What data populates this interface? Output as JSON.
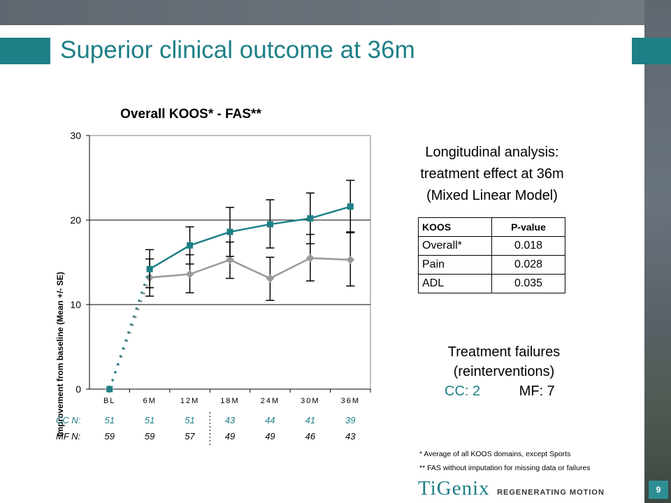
{
  "slide": {
    "title": "Superior clinical outcome at 36m",
    "page_number": "9"
  },
  "chart_data": {
    "type": "line",
    "title": "Overall KOOS* - FAS**",
    "ylabel": "Improvement from baseline (Mean +/- SE)",
    "xlabel": "",
    "categories": [
      "BL",
      "6M",
      "12M",
      "18M",
      "24M",
      "30M",
      "36M"
    ],
    "ylim": [
      0,
      30
    ],
    "yticks": [
      0,
      10,
      20,
      30
    ],
    "grid": "horizontal",
    "series": [
      {
        "key": "CC",
        "color": "#1e7f86",
        "marker": "square",
        "values": [
          0,
          14.2,
          17.0,
          18.6,
          19.5,
          20.2,
          21.6
        ],
        "upper": [
          null,
          16.5,
          19.2,
          21.5,
          22.4,
          23.2,
          24.7
        ],
        "lower": [
          null,
          12.0,
          14.8,
          15.7,
          16.7,
          17.2,
          18.6
        ]
      },
      {
        "key": "MF",
        "color": "#999999",
        "marker": "diamond",
        "values": [
          0,
          13.2,
          13.6,
          15.3,
          13.1,
          15.5,
          15.3
        ],
        "upper": [
          null,
          15.4,
          15.9,
          17.4,
          15.6,
          18.3,
          18.5
        ],
        "lower": [
          null,
          11.0,
          11.4,
          13.1,
          10.5,
          12.8,
          12.2
        ]
      }
    ]
  },
  "n_table": {
    "cc_label": "CC N:",
    "cc_values": [
      "51",
      "51",
      "51",
      "43",
      "44",
      "41",
      "39"
    ],
    "mf_label": "MF N:",
    "mf_values": [
      "59",
      "59",
      "57",
      "49",
      "49",
      "46",
      "43"
    ]
  },
  "analysis": {
    "line1": "Longitudinal analysis:",
    "line2": "treatment effect at 36m",
    "line3": "(Mixed Linear Model)",
    "headers": [
      "KOOS",
      "P-value"
    ],
    "rows": [
      [
        "Overall*",
        "0.018"
      ],
      [
        "Pain",
        "0.028"
      ],
      [
        "ADL",
        "0.035"
      ]
    ]
  },
  "failures": {
    "line1": "Treatment failures",
    "line2": "(reinterventions)",
    "cc": "CC: 2",
    "mf": "MF: 7",
    "cc_color": "#1e7f86"
  },
  "footnotes": {
    "f1": "* Average of all KOOS domains, except Sports",
    "f2": "** FAS without imputation for missing data or failures"
  },
  "logo": {
    "brand": "TiGenix",
    "tagline": "REGENERATING MOTION"
  },
  "colors": {
    "accent": "#1e7f86",
    "cc_series": "#1e7f86",
    "mf_series": "#999999"
  }
}
